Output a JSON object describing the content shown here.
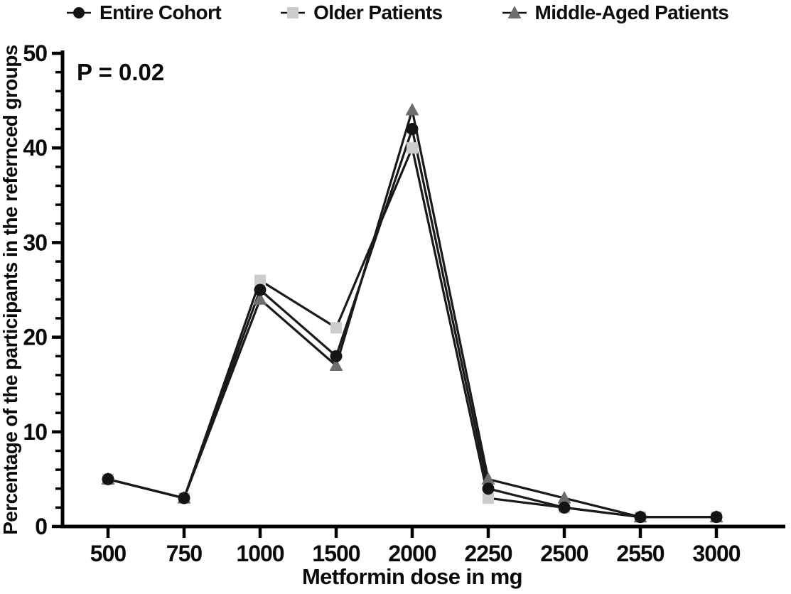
{
  "figure": {
    "background": "#ffffff",
    "axis_color": "#000000"
  },
  "chart_data": {
    "type": "line",
    "title": "",
    "xlabel": "Metformin dose in mg",
    "ylabel": "Percentage of the participants in the refernced groups",
    "annotation": "P = 0.02",
    "categories": [
      "500",
      "750",
      "1000",
      "1500",
      "2000",
      "2250",
      "2500",
      "2550",
      "3000"
    ],
    "ylim": [
      0,
      50
    ],
    "y_major_ticks": [
      0,
      10,
      20,
      30,
      40,
      50
    ],
    "y_minor_step": 2,
    "grid": false,
    "legend_position": "top",
    "line_color": "#1a1a1a",
    "series": [
      {
        "name": "Entire Cohort",
        "marker": "circle",
        "color": "#141414",
        "values": [
          5,
          3,
          25,
          18,
          42,
          4,
          2,
          1,
          1
        ]
      },
      {
        "name": "Older Patients",
        "marker": "square",
        "color": "#cccccc",
        "values": [
          5,
          3,
          26,
          21,
          40,
          3,
          2,
          1,
          1
        ]
      },
      {
        "name": "Middle-Aged Patients",
        "marker": "triangle",
        "color": "#6e6e6e",
        "values": [
          5,
          3,
          24,
          17,
          44,
          5,
          3,
          1,
          1
        ]
      }
    ]
  }
}
